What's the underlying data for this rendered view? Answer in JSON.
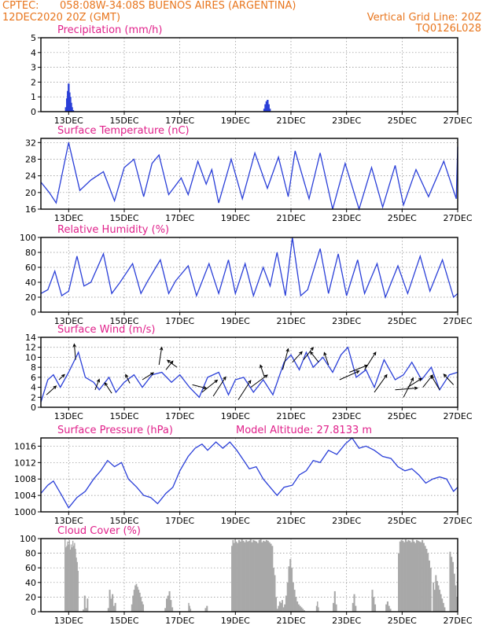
{
  "header": {
    "line1_left": "CPTEC:",
    "line1_right": "058:08W-34:08S  BUENOS AIRES (ARGENTINA)",
    "line2_left": "12DEC2020 20Z (GMT)",
    "line2_right": "Vertical Grid Line: 20Z",
    "line3_right": "TQ0126L028"
  },
  "colors": {
    "header": "#e8761e",
    "title": "#e0208a",
    "series": "#2a3fd8",
    "cloud": "#a8a8a8"
  },
  "x_axis": {
    "domain": [
      0,
      15
    ],
    "ticks": [
      {
        "x": 1,
        "label": "13DEC"
      },
      {
        "x": 3,
        "label": "15DEC"
      },
      {
        "x": 5,
        "label": "17DEC"
      },
      {
        "x": 7,
        "label": "19DEC"
      },
      {
        "x": 9,
        "label": "21DEC"
      },
      {
        "x": 11,
        "label": "23DEC"
      },
      {
        "x": 13,
        "label": "25DEC"
      },
      {
        "x": 15,
        "label": "27DEC"
      }
    ]
  },
  "chart_data": [
    {
      "type": "bar",
      "title": "Precipitation (mm/h)",
      "extra_title": "",
      "ylim": [
        0,
        5
      ],
      "yticks": [
        0,
        1,
        2,
        3,
        4,
        5
      ],
      "grid": true,
      "bars": [
        [
          0.9,
          0.3
        ],
        [
          0.94,
          0.9
        ],
        [
          0.97,
          1.4
        ],
        [
          1.0,
          1.9
        ],
        [
          1.03,
          1.3
        ],
        [
          1.06,
          1.0
        ],
        [
          1.09,
          0.6
        ],
        [
          1.12,
          0.3
        ],
        [
          1.16,
          0.1
        ],
        [
          8.04,
          0.2
        ],
        [
          8.08,
          0.5
        ],
        [
          8.12,
          0.7
        ],
        [
          8.16,
          0.8
        ],
        [
          8.2,
          0.5
        ],
        [
          8.24,
          0.2
        ]
      ]
    },
    {
      "type": "line",
      "title": "Surface Temperature (nC)",
      "extra_title": "",
      "ylim": [
        16,
        33
      ],
      "yticks": [
        16,
        20,
        24,
        28,
        32
      ],
      "grid": true,
      "points": [
        [
          0.0,
          22.5
        ],
        [
          0.3,
          20.0
        ],
        [
          0.55,
          17.5
        ],
        [
          1.0,
          32.0
        ],
        [
          1.4,
          20.5
        ],
        [
          1.8,
          23.0
        ],
        [
          2.25,
          25.0
        ],
        [
          2.65,
          18.0
        ],
        [
          3.0,
          26.0
        ],
        [
          3.35,
          28.0
        ],
        [
          3.7,
          19.0
        ],
        [
          4.0,
          27.0
        ],
        [
          4.25,
          29.0
        ],
        [
          4.6,
          19.5
        ],
        [
          5.05,
          23.5
        ],
        [
          5.3,
          19.5
        ],
        [
          5.65,
          27.5
        ],
        [
          5.95,
          22.0
        ],
        [
          6.15,
          25.5
        ],
        [
          6.4,
          17.5
        ],
        [
          6.85,
          28.0
        ],
        [
          7.25,
          18.5
        ],
        [
          7.7,
          29.5
        ],
        [
          8.15,
          21.0
        ],
        [
          8.55,
          28.5
        ],
        [
          8.9,
          19.0
        ],
        [
          9.15,
          30.0
        ],
        [
          9.65,
          18.5
        ],
        [
          10.05,
          29.5
        ],
        [
          10.5,
          16.0
        ],
        [
          10.95,
          27.0
        ],
        [
          11.45,
          16.0
        ],
        [
          11.9,
          26.0
        ],
        [
          12.3,
          16.5
        ],
        [
          12.75,
          26.5
        ],
        [
          13.05,
          17.0
        ],
        [
          13.5,
          25.5
        ],
        [
          13.95,
          19.0
        ],
        [
          14.5,
          27.5
        ],
        [
          14.95,
          18.5
        ],
        [
          15.0,
          31.0
        ]
      ]
    },
    {
      "type": "line",
      "title": "Relative Humidity (%)",
      "extra_title": "",
      "ylim": [
        0,
        100
      ],
      "yticks": [
        0,
        20,
        40,
        60,
        80,
        100
      ],
      "grid": true,
      "points": [
        [
          0.0,
          25.0
        ],
        [
          0.25,
          30.0
        ],
        [
          0.5,
          55.0
        ],
        [
          0.75,
          22.0
        ],
        [
          1.0,
          28.0
        ],
        [
          1.3,
          75.0
        ],
        [
          1.55,
          35.0
        ],
        [
          1.8,
          40.0
        ],
        [
          2.25,
          78.0
        ],
        [
          2.55,
          25.0
        ],
        [
          2.85,
          40.0
        ],
        [
          3.3,
          65.0
        ],
        [
          3.6,
          25.0
        ],
        [
          3.85,
          42.0
        ],
        [
          4.3,
          70.0
        ],
        [
          4.6,
          25.0
        ],
        [
          4.85,
          42.0
        ],
        [
          5.3,
          62.0
        ],
        [
          5.6,
          22.0
        ],
        [
          6.05,
          65.0
        ],
        [
          6.4,
          25.0
        ],
        [
          6.75,
          70.0
        ],
        [
          7.0,
          25.0
        ],
        [
          7.35,
          65.0
        ],
        [
          7.65,
          22.0
        ],
        [
          8.0,
          60.0
        ],
        [
          8.25,
          35.0
        ],
        [
          8.5,
          80.0
        ],
        [
          8.8,
          22.0
        ],
        [
          9.05,
          100.0
        ],
        [
          9.35,
          22.0
        ],
        [
          9.6,
          30.0
        ],
        [
          10.05,
          85.0
        ],
        [
          10.35,
          25.0
        ],
        [
          10.7,
          78.0
        ],
        [
          11.0,
          22.0
        ],
        [
          11.4,
          70.0
        ],
        [
          11.65,
          25.0
        ],
        [
          12.1,
          65.0
        ],
        [
          12.4,
          20.0
        ],
        [
          12.85,
          62.0
        ],
        [
          13.2,
          25.0
        ],
        [
          13.65,
          75.0
        ],
        [
          14.0,
          28.0
        ],
        [
          14.45,
          70.0
        ],
        [
          14.85,
          20.0
        ],
        [
          15.0,
          25.0
        ]
      ]
    },
    {
      "type": "line",
      "title": "Surface Wind (m/s)",
      "extra_title": "",
      "ylim": [
        0,
        14
      ],
      "yticks": [
        0,
        2,
        4,
        6,
        8,
        10,
        12,
        14
      ],
      "grid": true,
      "points": [
        [
          0.0,
          1.0
        ],
        [
          0.25,
          5.5
        ],
        [
          0.45,
          6.5
        ],
        [
          0.7,
          4.0
        ],
        [
          1.0,
          7.0
        ],
        [
          1.35,
          11.0
        ],
        [
          1.6,
          6.0
        ],
        [
          1.9,
          5.0
        ],
        [
          2.1,
          3.5
        ],
        [
          2.45,
          6.0
        ],
        [
          2.7,
          3.0
        ],
        [
          3.0,
          5.0
        ],
        [
          3.35,
          6.5
        ],
        [
          3.65,
          4.0
        ],
        [
          4.0,
          6.5
        ],
        [
          4.35,
          7.0
        ],
        [
          4.7,
          5.0
        ],
        [
          5.0,
          6.5
        ],
        [
          5.35,
          4.0
        ],
        [
          5.7,
          2.0
        ],
        [
          6.0,
          6.0
        ],
        [
          6.4,
          7.0
        ],
        [
          6.75,
          2.5
        ],
        [
          7.0,
          5.5
        ],
        [
          7.3,
          6.0
        ],
        [
          7.65,
          3.0
        ],
        [
          8.0,
          5.5
        ],
        [
          8.35,
          2.5
        ],
        [
          8.75,
          9.0
        ],
        [
          9.0,
          10.5
        ],
        [
          9.3,
          7.5
        ],
        [
          9.55,
          11.0
        ],
        [
          9.8,
          8.0
        ],
        [
          10.15,
          10.0
        ],
        [
          10.5,
          7.0
        ],
        [
          10.8,
          10.5
        ],
        [
          11.05,
          12.0
        ],
        [
          11.35,
          6.0
        ],
        [
          11.7,
          7.5
        ],
        [
          12.0,
          4.0
        ],
        [
          12.35,
          9.5
        ],
        [
          12.75,
          5.5
        ],
        [
          13.05,
          6.5
        ],
        [
          13.35,
          9.0
        ],
        [
          13.7,
          5.5
        ],
        [
          14.05,
          8.0
        ],
        [
          14.35,
          3.5
        ],
        [
          14.7,
          6.5
        ],
        [
          15.0,
          7.0
        ]
      ],
      "vectors": [
        [
          0.2,
          2.5,
          0.35,
          0.25
        ],
        [
          0.65,
          5.5,
          0.2,
          0.15
        ],
        [
          1.25,
          9.5,
          -0.05,
          0.45
        ],
        [
          1.95,
          3.5,
          0.15,
          0.3
        ],
        [
          2.55,
          2.8,
          -0.25,
          0.3
        ],
        [
          3.2,
          4.8,
          -0.15,
          0.25
        ],
        [
          3.65,
          5.5,
          0.4,
          0.2
        ],
        [
          4.25,
          8.5,
          0.1,
          0.5
        ],
        [
          4.5,
          7.5,
          0.25,
          0.25
        ],
        [
          4.9,
          8.0,
          -0.35,
          0.2
        ],
        [
          5.45,
          4.5,
          0.5,
          -0.1
        ],
        [
          5.8,
          3.0,
          0.55,
          0.35
        ],
        [
          6.2,
          2.2,
          0.45,
          0.55
        ],
        [
          7.1,
          1.5,
          0.45,
          0.55
        ],
        [
          7.55,
          4.0,
          0.6,
          0.35
        ],
        [
          8.05,
          6.0,
          -0.15,
          0.35
        ],
        [
          8.7,
          7.5,
          0.2,
          0.6
        ],
        [
          9.05,
          9.0,
          0.35,
          0.3
        ],
        [
          9.45,
          9.5,
          0.35,
          0.35
        ],
        [
          10.0,
          9.0,
          -0.3,
          0.3
        ],
        [
          10.35,
          8.5,
          -0.15,
          0.35
        ],
        [
          10.75,
          5.5,
          0.7,
          0.25
        ],
        [
          11.1,
          7.0,
          0.65,
          0.2
        ],
        [
          11.65,
          7.5,
          0.4,
          0.5
        ],
        [
          12.0,
          3.0,
          0.45,
          0.5
        ],
        [
          12.75,
          3.5,
          0.8,
          0.05
        ],
        [
          13.2,
          4.0,
          0.5,
          0.25
        ],
        [
          13.05,
          2.0,
          0.35,
          0.55
        ],
        [
          13.75,
          4.0,
          0.35,
          0.35
        ],
        [
          14.35,
          3.5,
          -0.3,
          0.4
        ],
        [
          14.85,
          4.5,
          -0.35,
          0.3
        ]
      ]
    },
    {
      "type": "line",
      "title": "Surface Pressure (hPa)",
      "extra_title": "Model Altitude: 27.8133 m",
      "ylim": [
        1000,
        1018
      ],
      "yticks": [
        1000,
        1004,
        1008,
        1012,
        1016
      ],
      "grid": true,
      "points": [
        [
          0.0,
          1004.5
        ],
        [
          0.25,
          1006.5
        ],
        [
          0.45,
          1007.5
        ],
        [
          0.75,
          1004.0
        ],
        [
          1.0,
          1001.0
        ],
        [
          1.3,
          1003.5
        ],
        [
          1.6,
          1005.0
        ],
        [
          1.9,
          1008.0
        ],
        [
          2.15,
          1010.0
        ],
        [
          2.4,
          1012.5
        ],
        [
          2.65,
          1011.0
        ],
        [
          2.9,
          1012.0
        ],
        [
          3.15,
          1008.0
        ],
        [
          3.45,
          1006.0
        ],
        [
          3.7,
          1004.0
        ],
        [
          3.95,
          1003.5
        ],
        [
          4.2,
          1002.0
        ],
        [
          4.5,
          1004.5
        ],
        [
          4.75,
          1006.0
        ],
        [
          5.0,
          1010.0
        ],
        [
          5.3,
          1013.5
        ],
        [
          5.55,
          1015.5
        ],
        [
          5.8,
          1016.5
        ],
        [
          6.0,
          1015.0
        ],
        [
          6.3,
          1017.0
        ],
        [
          6.55,
          1015.5
        ],
        [
          6.8,
          1017.0
        ],
        [
          7.05,
          1015.0
        ],
        [
          7.25,
          1013.0
        ],
        [
          7.5,
          1010.5
        ],
        [
          7.75,
          1011.0
        ],
        [
          8.0,
          1008.0
        ],
        [
          8.25,
          1006.0
        ],
        [
          8.5,
          1004.0
        ],
        [
          8.75,
          1006.0
        ],
        [
          9.05,
          1006.5
        ],
        [
          9.3,
          1009.0
        ],
        [
          9.55,
          1010.0
        ],
        [
          9.8,
          1012.5
        ],
        [
          10.05,
          1012.0
        ],
        [
          10.35,
          1015.0
        ],
        [
          10.65,
          1014.0
        ],
        [
          10.95,
          1016.5
        ],
        [
          11.2,
          1018.0
        ],
        [
          11.45,
          1015.5
        ],
        [
          11.7,
          1016.0
        ],
        [
          12.0,
          1015.0
        ],
        [
          12.3,
          1013.5
        ],
        [
          12.6,
          1013.0
        ],
        [
          12.85,
          1011.0
        ],
        [
          13.1,
          1010.0
        ],
        [
          13.35,
          1010.5
        ],
        [
          13.6,
          1009.0
        ],
        [
          13.85,
          1007.0
        ],
        [
          14.1,
          1008.0
        ],
        [
          14.35,
          1008.5
        ],
        [
          14.6,
          1008.0
        ],
        [
          14.85,
          1005.0
        ],
        [
          15.0,
          1006.0
        ]
      ]
    },
    {
      "type": "bar",
      "title": "Cloud Cover (%)",
      "extra_title": "",
      "ylim": [
        0,
        100
      ],
      "yticks": [
        0,
        20,
        40,
        60,
        80,
        100
      ],
      "grid": true,
      "segments": [
        [
          0.85,
          1.35,
          0,
          99,
          88,
          90,
          96,
          92,
          98,
          85,
          92,
          88,
          97,
          90,
          94,
          86,
          74,
          68,
          56
        ],
        [
          1.5,
          1.55,
          1,
          3
        ],
        [
          1.55,
          1.7,
          2,
          22,
          5,
          18
        ],
        [
          2.4,
          2.7,
          3,
          5,
          30,
          18,
          24,
          8,
          12
        ],
        [
          3.25,
          3.7,
          4,
          10,
          22,
          30,
          36,
          38,
          34,
          30,
          26,
          20,
          14,
          10
        ],
        [
          4.45,
          4.75,
          5,
          5,
          18,
          22,
          28,
          16,
          6
        ],
        [
          5.3,
          5.4,
          6,
          12,
          8,
          4
        ],
        [
          5.9,
          6.0,
          7,
          5,
          8
        ],
        [
          6.85,
          7.05,
          8,
          90,
          98,
          94,
          99,
          96
        ],
        [
          7.05,
          8.35,
          9,
          94,
          98,
          96,
          99,
          97,
          95,
          98,
          96,
          97,
          99,
          95,
          98,
          97,
          96,
          94,
          98,
          99,
          95,
          97,
          96,
          98,
          97,
          95,
          93,
          90
        ],
        [
          8.35,
          8.75,
          10,
          60,
          50,
          20,
          4,
          8,
          14,
          12,
          16,
          6
        ],
        [
          8.75,
          9.5,
          11,
          10,
          22,
          40,
          62,
          72,
          60,
          40,
          30,
          20,
          14,
          10,
          8,
          6,
          4,
          2
        ],
        [
          9.9,
          10.0,
          12,
          8,
          14,
          6
        ],
        [
          10.5,
          10.65,
          13,
          12,
          28,
          10
        ],
        [
          11.2,
          11.35,
          14,
          12,
          24,
          8
        ],
        [
          11.9,
          12.05,
          15,
          30,
          20,
          10
        ],
        [
          12.4,
          12.6,
          16,
          10,
          14,
          8,
          4
        ],
        [
          12.85,
          14.05,
          17,
          80,
          96,
          98,
          97,
          95,
          99,
          96,
          98,
          97,
          95,
          99,
          96,
          94,
          98,
          97,
          96,
          95,
          98,
          94,
          90,
          86,
          80,
          70,
          60
        ],
        [
          14.1,
          14.55,
          18,
          40,
          30,
          50,
          42,
          36,
          30,
          24,
          18,
          12,
          6
        ],
        [
          14.7,
          14.85,
          19,
          82,
          75,
          68
        ],
        [
          14.85,
          15.0,
          20,
          52,
          36,
          20
        ]
      ]
    }
  ]
}
